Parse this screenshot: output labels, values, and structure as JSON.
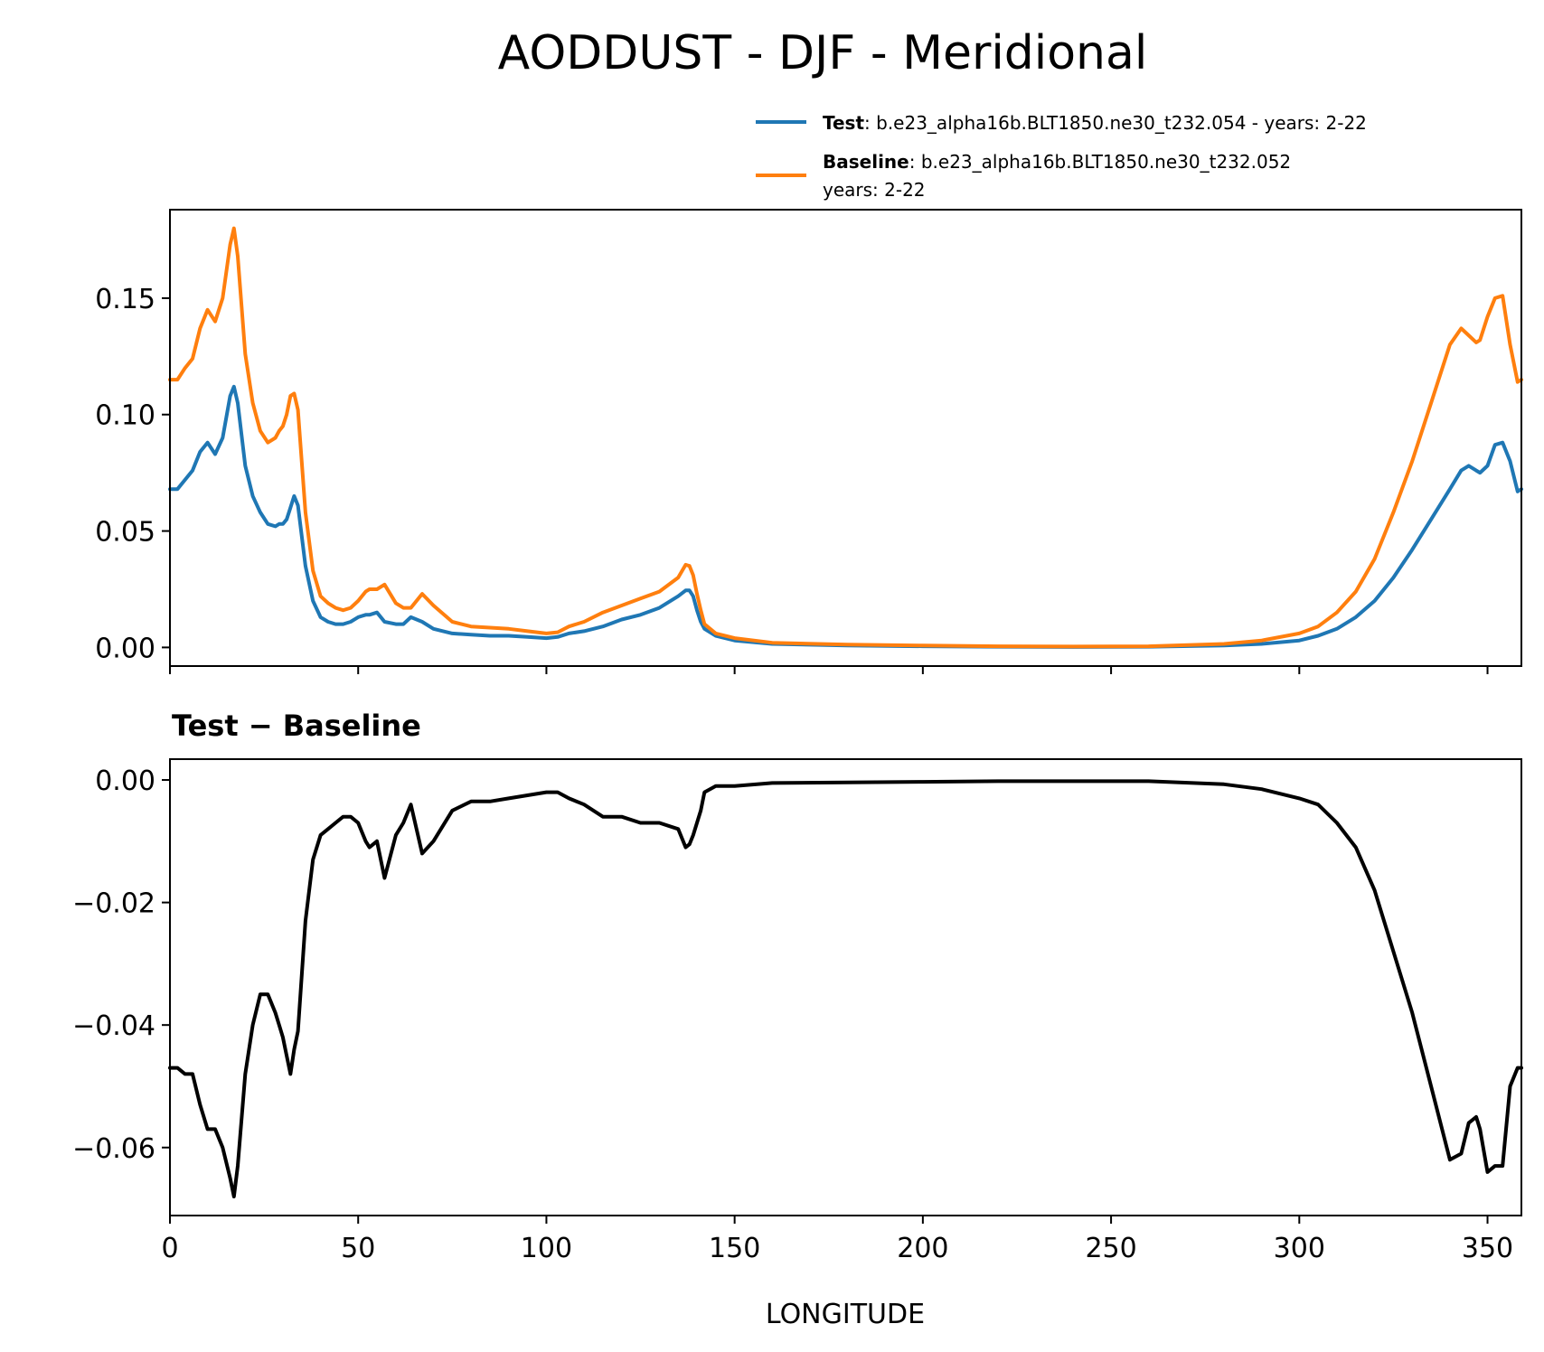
{
  "chart_data": [
    {
      "type": "line",
      "title": "AODDUST - DJF - Meridional",
      "xlabel": "",
      "ylabel": "",
      "xlim": [
        0,
        359
      ],
      "ylim": [
        -0.008,
        0.188
      ],
      "yticks": [
        "0.00",
        "0.05",
        "0.10",
        "0.15"
      ],
      "ytick_values": [
        0.0,
        0.05,
        0.1,
        0.15
      ],
      "xticks": [
        0,
        50,
        100,
        150,
        200,
        250,
        300,
        350
      ],
      "legend": {
        "position": "top-right, above plot",
        "entries": [
          {
            "name": "Test",
            "separator": ": ",
            "text": "b.e23_alpha16b.BLT1850.ne30_t232.054 - years: 2-22",
            "color": "#1f77b4"
          },
          {
            "name": "Baseline",
            "separator": ": ",
            "text": "b.e23_alpha16b.BLT1850.ne30_t232.052",
            "text2": "years: 2-22",
            "color": "#ff7f0e"
          }
        ]
      },
      "series": [
        {
          "name": "Test",
          "color": "#1f77b4",
          "x": [
            0,
            2,
            4,
            6,
            8,
            10,
            12,
            14,
            16,
            17,
            18,
            20,
            22,
            24,
            26,
            28,
            29,
            30,
            31,
            32,
            33,
            34,
            36,
            38,
            40,
            42,
            44,
            46,
            48,
            50,
            52,
            53,
            55,
            57,
            60,
            62,
            64,
            67,
            70,
            75,
            80,
            85,
            90,
            95,
            100,
            103,
            106,
            110,
            115,
            120,
            125,
            130,
            135,
            137,
            138,
            139,
            140,
            141,
            142,
            145,
            150,
            160,
            180,
            200,
            220,
            240,
            260,
            280,
            290,
            300,
            305,
            310,
            315,
            320,
            325,
            330,
            335,
            340,
            343,
            345,
            347,
            348,
            350,
            352,
            354,
            356,
            358,
            359
          ],
          "y": [
            0.068,
            0.068,
            0.072,
            0.076,
            0.084,
            0.088,
            0.083,
            0.09,
            0.108,
            0.112,
            0.105,
            0.078,
            0.065,
            0.058,
            0.053,
            0.052,
            0.053,
            0.053,
            0.055,
            0.06,
            0.065,
            0.061,
            0.035,
            0.02,
            0.013,
            0.011,
            0.01,
            0.01,
            0.011,
            0.013,
            0.014,
            0.014,
            0.015,
            0.011,
            0.01,
            0.01,
            0.013,
            0.011,
            0.008,
            0.006,
            0.0055,
            0.005,
            0.005,
            0.0045,
            0.004,
            0.0045,
            0.006,
            0.007,
            0.009,
            0.012,
            0.014,
            0.017,
            0.022,
            0.0245,
            0.0245,
            0.022,
            0.016,
            0.011,
            0.008,
            0.005,
            0.003,
            0.0015,
            0.0008,
            0.0005,
            0.0003,
            0.0002,
            0.0003,
            0.0008,
            0.0015,
            0.003,
            0.005,
            0.008,
            0.013,
            0.02,
            0.03,
            0.042,
            0.055,
            0.068,
            0.076,
            0.078,
            0.076,
            0.075,
            0.078,
            0.087,
            0.088,
            0.08,
            0.067,
            0.068
          ]
        },
        {
          "name": "Baseline",
          "color": "#ff7f0e",
          "x": [
            0,
            2,
            4,
            6,
            8,
            10,
            12,
            14,
            16,
            17,
            18,
            20,
            22,
            24,
            26,
            28,
            29,
            30,
            31,
            32,
            33,
            34,
            36,
            38,
            40,
            42,
            44,
            46,
            48,
            50,
            52,
            53,
            55,
            57,
            60,
            62,
            64,
            67,
            70,
            75,
            80,
            85,
            90,
            95,
            100,
            103,
            106,
            110,
            115,
            120,
            125,
            130,
            135,
            137,
            138,
            139,
            140,
            141,
            142,
            145,
            150,
            160,
            180,
            200,
            220,
            240,
            260,
            280,
            290,
            300,
            305,
            310,
            315,
            320,
            325,
            330,
            335,
            340,
            343,
            345,
            347,
            348,
            350,
            352,
            354,
            356,
            358,
            359
          ],
          "y": [
            0.115,
            0.115,
            0.12,
            0.124,
            0.137,
            0.145,
            0.14,
            0.15,
            0.173,
            0.18,
            0.168,
            0.126,
            0.105,
            0.093,
            0.088,
            0.09,
            0.093,
            0.095,
            0.1,
            0.108,
            0.109,
            0.102,
            0.058,
            0.033,
            0.022,
            0.019,
            0.017,
            0.016,
            0.017,
            0.02,
            0.024,
            0.025,
            0.025,
            0.027,
            0.019,
            0.017,
            0.017,
            0.023,
            0.018,
            0.011,
            0.009,
            0.0085,
            0.008,
            0.007,
            0.006,
            0.0065,
            0.009,
            0.011,
            0.015,
            0.018,
            0.021,
            0.024,
            0.03,
            0.0355,
            0.035,
            0.031,
            0.023,
            0.016,
            0.01,
            0.006,
            0.004,
            0.002,
            0.0012,
            0.0008,
            0.0005,
            0.0004,
            0.0005,
            0.0015,
            0.003,
            0.006,
            0.009,
            0.015,
            0.024,
            0.038,
            0.058,
            0.08,
            0.105,
            0.13,
            0.137,
            0.134,
            0.131,
            0.132,
            0.142,
            0.15,
            0.151,
            0.13,
            0.114,
            0.115
          ]
        }
      ]
    },
    {
      "type": "line",
      "title": "Test − Baseline",
      "xlabel": "LONGITUDE",
      "ylabel": "",
      "xlim": [
        0,
        359
      ],
      "ylim": [
        -0.0711,
        0.0034
      ],
      "yticks": [
        "−0.06",
        "−0.04",
        "−0.02",
        "0.00"
      ],
      "ytick_values": [
        -0.06,
        -0.04,
        -0.02,
        0.0
      ],
      "xticks": [
        0,
        50,
        100,
        150,
        200,
        250,
        300,
        350
      ],
      "xticklabels": [
        "0",
        "50",
        "100",
        "150",
        "200",
        "250",
        "300",
        "350"
      ],
      "series": [
        {
          "name": "Test - Baseline",
          "color": "#000000",
          "x": [
            0,
            2,
            4,
            6,
            8,
            10,
            12,
            14,
            16,
            17,
            18,
            20,
            22,
            24,
            26,
            28,
            29,
            30,
            31,
            32,
            33,
            34,
            36,
            38,
            40,
            42,
            44,
            46,
            48,
            50,
            52,
            53,
            55,
            57,
            60,
            62,
            64,
            67,
            70,
            75,
            80,
            85,
            90,
            95,
            100,
            103,
            106,
            110,
            115,
            120,
            125,
            130,
            135,
            137,
            138,
            139,
            140,
            141,
            142,
            145,
            150,
            160,
            180,
            200,
            220,
            240,
            260,
            280,
            290,
            300,
            305,
            310,
            315,
            320,
            325,
            330,
            335,
            340,
            343,
            345,
            347,
            348,
            350,
            352,
            354,
            356,
            358,
            359
          ],
          "y": [
            -0.047,
            -0.047,
            -0.048,
            -0.048,
            -0.053,
            -0.057,
            -0.057,
            -0.06,
            -0.065,
            -0.068,
            -0.063,
            -0.048,
            -0.04,
            -0.035,
            -0.035,
            -0.038,
            -0.04,
            -0.042,
            -0.045,
            -0.048,
            -0.044,
            -0.041,
            -0.023,
            -0.013,
            -0.009,
            -0.008,
            -0.007,
            -0.006,
            -0.006,
            -0.007,
            -0.01,
            -0.011,
            -0.01,
            -0.016,
            -0.009,
            -0.007,
            -0.004,
            -0.012,
            -0.01,
            -0.005,
            -0.0035,
            -0.0035,
            -0.003,
            -0.0025,
            -0.002,
            -0.002,
            -0.003,
            -0.004,
            -0.006,
            -0.006,
            -0.007,
            -0.007,
            -0.008,
            -0.011,
            -0.0105,
            -0.009,
            -0.007,
            -0.005,
            -0.002,
            -0.001,
            -0.001,
            -0.0005,
            -0.0004,
            -0.0003,
            -0.0002,
            -0.0002,
            -0.0002,
            -0.0007,
            -0.0015,
            -0.003,
            -0.004,
            -0.007,
            -0.011,
            -0.018,
            -0.028,
            -0.038,
            -0.05,
            -0.062,
            -0.061,
            -0.056,
            -0.055,
            -0.057,
            -0.064,
            -0.063,
            -0.063,
            -0.05,
            -0.047,
            -0.047
          ]
        }
      ]
    }
  ]
}
